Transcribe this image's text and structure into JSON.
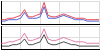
{
  "chart_data": [
    {
      "type": "line",
      "grid": true,
      "tick_labels": false,
      "x": [
        0,
        2,
        4,
        6,
        8,
        10,
        12,
        14,
        16,
        18,
        20,
        22,
        24,
        26,
        28,
        30,
        32,
        34,
        36,
        38,
        40,
        42,
        44,
        46,
        48,
        50
      ],
      "xlim": [
        0,
        50
      ],
      "xticks": [
        0,
        10,
        20,
        30,
        40,
        50
      ],
      "ylim": [
        0,
        16
      ],
      "yticks": [
        0,
        8,
        16
      ],
      "series": [
        {
          "color": "#e0202a",
          "values": [
            3,
            3,
            4,
            4,
            5,
            6,
            10,
            5,
            5,
            6,
            7,
            15,
            6,
            5,
            5,
            6,
            7,
            6,
            5,
            4,
            4,
            4,
            3,
            3,
            3,
            3
          ]
        },
        {
          "color": "#2a3fd6",
          "values": [
            2,
            2,
            3,
            3,
            3,
            4,
            8,
            4,
            4,
            4,
            5,
            12,
            4,
            4,
            4,
            5,
            6,
            5,
            4,
            3,
            3,
            3,
            2,
            2,
            2,
            2
          ]
        }
      ]
    },
    {
      "type": "line",
      "grid": true,
      "tick_labels": false,
      "x": [
        0,
        2,
        4,
        6,
        8,
        10,
        12,
        14,
        16,
        18,
        20,
        22,
        24,
        26,
        28,
        30,
        32,
        34,
        36,
        38,
        40,
        42,
        44,
        46,
        48,
        50
      ],
      "xlim": [
        0,
        50
      ],
      "xticks": [
        0,
        10,
        20,
        30,
        40,
        50
      ],
      "ylim": [
        0,
        16
      ],
      "yticks": [
        0,
        8,
        16
      ],
      "series": [
        {
          "color": "#e0609a",
          "values": [
            4,
            4,
            5,
            5,
            6,
            7,
            11,
            6,
            6,
            7,
            8,
            14,
            7,
            6,
            6,
            7,
            8,
            7,
            6,
            5,
            5,
            5,
            4,
            4,
            4,
            4
          ]
        },
        {
          "color": "#202020",
          "values": [
            2,
            2,
            2,
            3,
            3,
            4,
            7,
            3,
            3,
            4,
            5,
            10,
            4,
            3,
            3,
            4,
            5,
            4,
            3,
            3,
            2,
            2,
            2,
            2,
            2,
            2
          ]
        }
      ]
    }
  ]
}
